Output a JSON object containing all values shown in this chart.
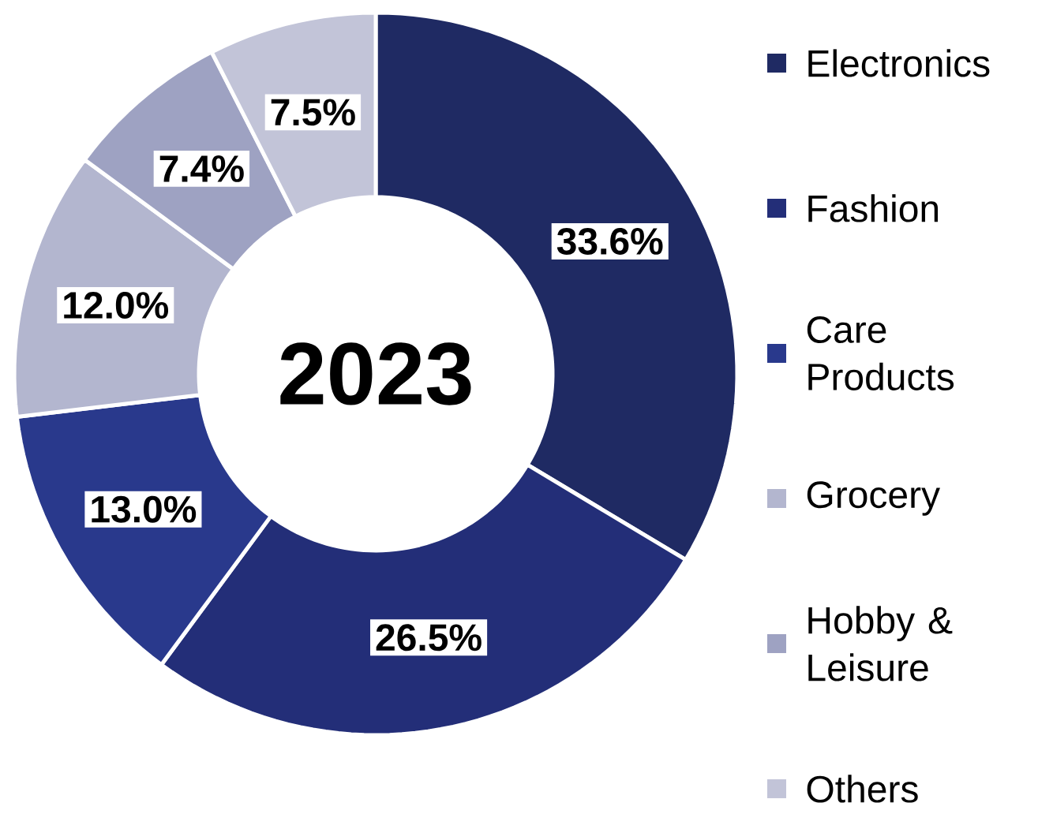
{
  "chart_data": {
    "type": "donut",
    "title": "2023",
    "categories": [
      "Electronics",
      "Fashion",
      "Care Products",
      "Grocery",
      "Hobby & Leisure",
      "Others"
    ],
    "values": [
      33.6,
      26.5,
      13.0,
      12.0,
      7.4,
      7.5
    ],
    "value_labels": [
      "33.6%",
      "26.5%",
      "13.0%",
      "12.0%",
      "7.4%",
      "7.5%"
    ],
    "colors": [
      "#1f2a63",
      "#232e78",
      "#29398c",
      "#b3b6cf",
      "#9ea2c2",
      "#c2c4d8"
    ],
    "legend": "right"
  }
}
